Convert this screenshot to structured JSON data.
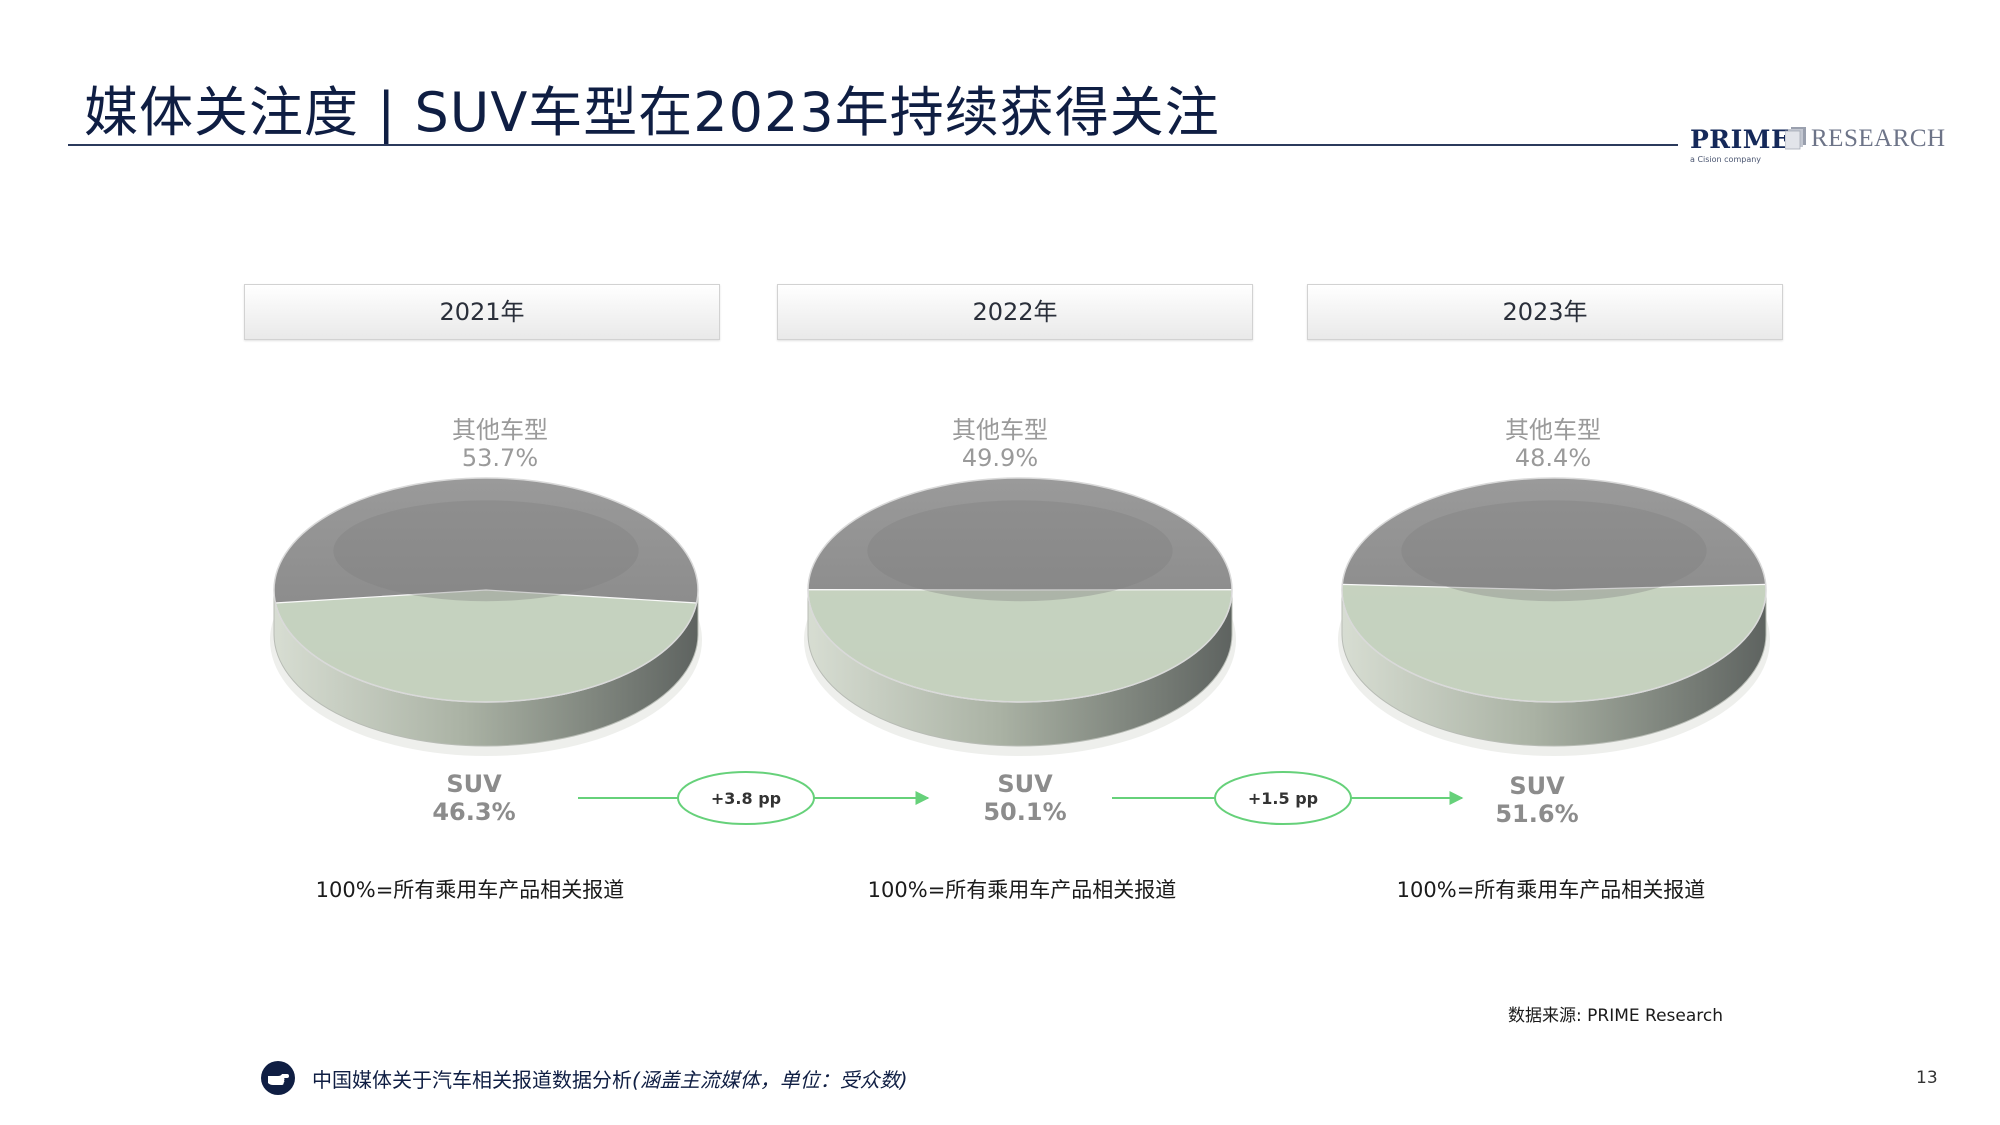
{
  "header": {
    "title": "媒体关注度 | SUV车型在2023年持续获得关注"
  },
  "logo": {
    "prime": "PRIME",
    "research": "RESEARCH",
    "tagline": "a Cision company"
  },
  "colors": {
    "other_slice": "#8c8c8c",
    "suv_slice": "#c9d6c2",
    "arrow": "#66d17a",
    "title": "#0f1e43"
  },
  "chart_data": [
    {
      "type": "pie",
      "title": "2021年",
      "slices": [
        {
          "label": "其他车型",
          "value": 53.7,
          "display": "53.7%"
        },
        {
          "label": "SUV",
          "value": 46.3,
          "display": "46.3%"
        }
      ],
      "note": "100%=所有乘用车产品相关报道"
    },
    {
      "type": "pie",
      "title": "2022年",
      "slices": [
        {
          "label": "其他车型",
          "value": 49.9,
          "display": "49.9%"
        },
        {
          "label": "SUV",
          "value": 50.1,
          "display": "50.1%"
        }
      ],
      "note": "100%=所有乘用车产品相关报道"
    },
    {
      "type": "pie",
      "title": "2023年",
      "slices": [
        {
          "label": "其他车型",
          "value": 48.4,
          "display": "48.4%"
        },
        {
          "label": "SUV",
          "value": 51.6,
          "display": "51.6%"
        }
      ],
      "note": "100%=所有乘用车产品相关报道"
    }
  ],
  "changes": [
    "+3.8 pp",
    "+1.5 pp"
  ],
  "source": "数据来源: PRIME Research",
  "footer": {
    "text": "中国媒体关于汽车相关报道数据分析",
    "italic": "(涵盖主流媒体，单位：受众数)",
    "page": "13"
  }
}
